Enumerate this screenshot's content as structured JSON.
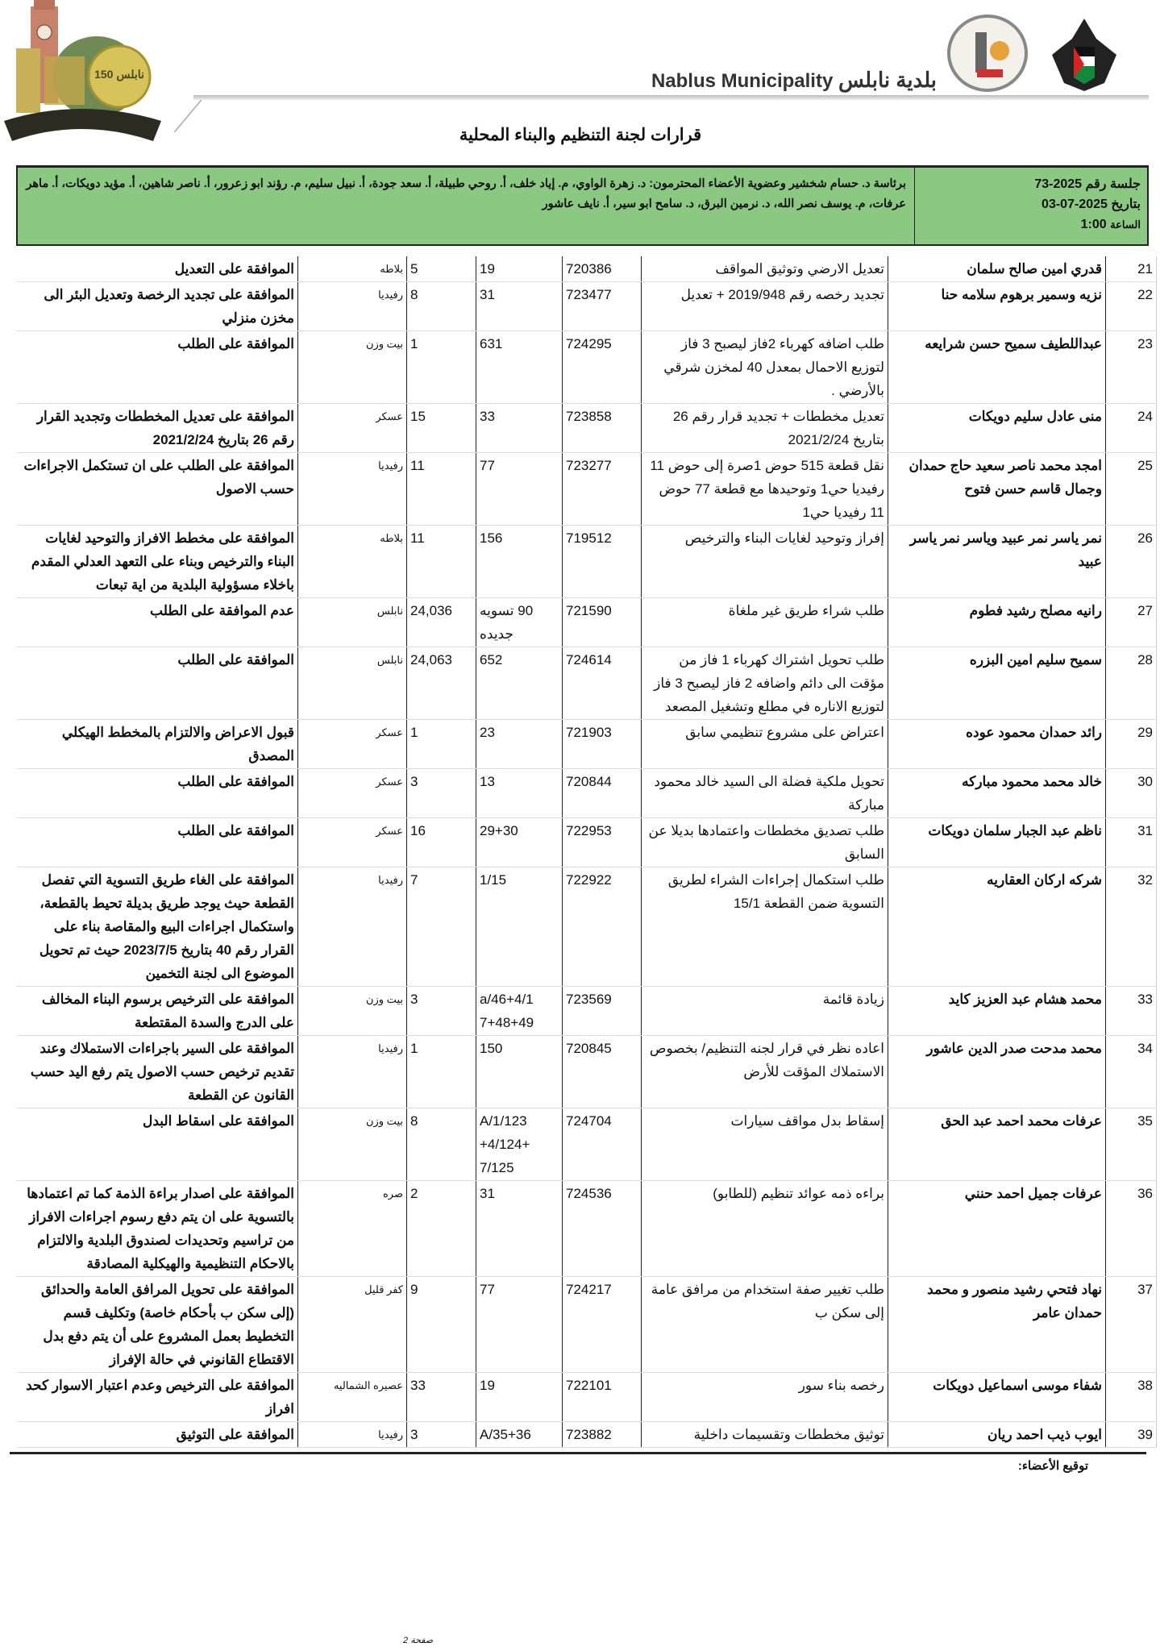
{
  "header": {
    "brand_ar": "بلدية نابلس",
    "brand_en": "Nablus Municipality",
    "left_logo_text": "نابلس 150",
    "seal_text": "بلدية نابلس",
    "emblem_text": "فلسطين",
    "title": "قرارات لجنة التنظيم والبناء المحلية"
  },
  "session": {
    "number": "جلسة رقم 2025-73",
    "date": "بتاريخ 2025-07-03",
    "time_label": "الساعة",
    "time": "1:00",
    "members": "برئاسة د. حسام شخشير وعضوية الأعضاء المحترمون: د. زهرة الواوي، م. إياد خلف، أ. روحي طبيلة، أ. سعد جودة، أ. نبيل سليم، م. رؤند ابو زعرور، أ. ناصر شاهين، أ. مؤيد دويكات، أ. ماهر عرفات، م. يوسف نصر الله، د. نرمين البرق، د. سامح ابو سير، أ. نايف عاشور"
  },
  "rows": [
    {
      "num": "21",
      "name": "قدري امين صالح سلمان",
      "desc": "تعديل الارضي وتوثيق المواقف",
      "file": "720386",
      "piece": "19",
      "basin": "5",
      "site": "بلاطه",
      "decision": "الموافقة على التعديل"
    },
    {
      "num": "22",
      "name": "نزيه وسمير برهوم سلامه حنا",
      "desc": "تجديد رخصه رقم 2019/948 + تعديل",
      "file": "723477",
      "piece": "31",
      "basin": "8",
      "site": "رفيديا",
      "decision": "الموافقة على تجديد الرخصة وتعديل البئر الى مخزن منزلي"
    },
    {
      "num": "23",
      "name": "عبداللطيف سميح حسن شرايعه",
      "desc": "طلب اضافه كهرباء 2فاز ليصبح 3 فاز لتوزيع الاحمال بمعدل 40 لمخزن شرقي بالأرضي .",
      "file": "724295",
      "piece": "631",
      "basin": "1",
      "site": "بيت وزن",
      "decision": "الموافقة على الطلب"
    },
    {
      "num": "24",
      "name": "منى عادل سليم دويكات",
      "desc": "تعديل مخططات + تجديد قرار رقم 26 بتاريخ 2021/2/24",
      "file": "723858",
      "piece": "33",
      "basin": "15",
      "site": "عسكر",
      "decision": "الموافقة على تعديل المخططات وتجديد القرار رقم 26 بتاريخ 2021/2/24"
    },
    {
      "num": "25",
      "name": "امجد محمد ناصر سعيد حاج حمدان وجمال قاسم حسن فتوح",
      "desc": "نقل قطعة 515 حوض 1صرة إلى حوض 11 رفيديا حي1 وتوحيدها مع قطعة 77 حوض 11 رفيديا حي1",
      "file": "723277",
      "piece": "77",
      "basin": "11",
      "site": "رفيديا",
      "decision": "الموافقة على الطلب على ان تستكمل الاجراءات حسب الاصول"
    },
    {
      "num": "26",
      "name": "نمر ياسر نمر عبيد وياسر نمر ياسر عبيد",
      "desc": "إفراز وتوحيد لغايات البناء والترخيص",
      "file": "719512",
      "piece": "156",
      "basin": "11",
      "site": "بلاطه",
      "decision": "الموافقة على مخطط الافراز والتوحيد لغايات البناء والترخيص وبناء على التعهد العدلي المقدم باخلاء مسؤولية البلدية من اية تبعات"
    },
    {
      "num": "27",
      "name": "رانيه مصلح رشيد فطوم",
      "desc": "طلب شراء طريق غير ملغاة",
      "file": "721590",
      "piece": "90 تسويه جديده",
      "basin": "24,036",
      "site": "نابلس",
      "decision": "عدم الموافقة على الطلب"
    },
    {
      "num": "28",
      "name": "سميح سليم امين البزره",
      "desc": "طلب تحويل اشتراك كهرباء 1 فاز من مؤقت الى دائم واضافه 2 فاز ليصبح 3 فاز لتوزيع الاناره في مطلع وتشغيل المصعد",
      "file": "724614",
      "piece": "652",
      "basin": "24,063",
      "site": "نابلس",
      "decision": "الموافقة على الطلب"
    },
    {
      "num": "29",
      "name": "رائد حمدان محمود عوده",
      "desc": "اعتراض على مشروع تنظيمي سابق",
      "file": "721903",
      "piece": "23",
      "basin": "1",
      "site": "عسكر",
      "decision": "قبول الاعراض والالتزام بالمخطط الهيكلي المصدق"
    },
    {
      "num": "30",
      "name": "خالد محمد محمود مباركه",
      "desc": "تحويل ملكية فضلة الى السيد خالد محمود مباركة",
      "file": "720844",
      "piece": "13",
      "basin": "3",
      "site": "عسكر",
      "decision": "الموافقة على الطلب"
    },
    {
      "num": "31",
      "name": "ناظم عبد الجبار سلمان دويكات",
      "desc": "طلب تصديق مخططات واعتمادها بديلا عن السابق",
      "file": "722953",
      "piece": "29+30",
      "basin": "16",
      "site": "عسكر",
      "decision": "الموافقة على الطلب"
    },
    {
      "num": "32",
      "name": "شركه اركان العقاريه",
      "desc": "طلب استكمال إجراءات الشراء لطريق التسوية ضمن القطعة 15/1",
      "file": "722922",
      "piece": "1/15",
      "basin": "7",
      "site": "رفيديا",
      "decision": "الموافقة على الغاء طريق التسوية التي تفصل القطعة حيث يوجد طريق بديلة تحيط بالقطعة، واستكمال اجراءات البيع والمقاصة بناء على القرار رقم 40 بتاريخ 2023/7/5 حيث تم تحويل الموضوع الى لجنة التخمين"
    },
    {
      "num": "33",
      "name": "محمد هشام عبد العزيز كايد",
      "desc": "زيادة قائمة",
      "file": "723569",
      "piece": "a/46+4/1 7+48+49",
      "basin": "3",
      "site": "بيت وزن",
      "decision": "الموافقة على الترخيص برسوم البناء المخالف على الدرج والسدة المقتطعة"
    },
    {
      "num": "34",
      "name": "محمد مدحت صدر الدين عاشور",
      "desc": "اعاده نظر في قرار لجنه التنظيم/ بخصوص الاستملاك المؤقت للأرض",
      "file": "720845",
      "piece": "150",
      "basin": "1",
      "site": "رفيديا",
      "decision": "الموافقة على السير باجراءات الاستملاك وعند تقديم ترخيص حسب الاصول يتم رفع اليد حسب القانون عن القطعة"
    },
    {
      "num": "35",
      "name": "عرفات محمد احمد عبد الحق",
      "desc": "إسقاط بدل مواقف سيارات",
      "file": "724704",
      "piece": "A/1/123 +4/124+ 7/125",
      "basin": "8",
      "site": "بيت وزن",
      "decision": "الموافقة على اسقاط البدل"
    },
    {
      "num": "36",
      "name": "عرفات جميل احمد حنني",
      "desc": "براءه ذمه عوائد تنظيم (للطابو)",
      "file": "724536",
      "piece": "31",
      "basin": "2",
      "site": "صره",
      "decision": "الموافقة على اصدار براءة الذمة كما تم اعتمادها بالتسوية على ان يتم دفع رسوم اجراءات الافراز من تراسيم وتحديدات لصندوق البلدية والالتزام بالاحكام التنظيمية والهيكلية المصادقة"
    },
    {
      "num": "37",
      "name": "نهاد فتحي رشيد منصور و محمد حمدان عامر",
      "desc": "طلب تغيير صفة استخدام من مرافق عامة إلى سكن ب",
      "file": "724217",
      "piece": "77",
      "basin": "9",
      "site": "كفر قليل",
      "decision": "الموافقة على تحويل المرافق العامة والحدائق (إلى سكن ب بأحكام خاصة) وتكليف قسم التخطيط بعمل المشروع على أن يتم دفع بدل الاقتطاع القانوني في حالة الإفراز"
    },
    {
      "num": "38",
      "name": "شفاء موسى اسماعيل دويكات",
      "desc": "رخصه بناء سور",
      "file": "722101",
      "piece": "19",
      "basin": "33",
      "site": "عصيره الشماليه",
      "decision": "الموافقة على الترخيص وعدم اعتبار الاسوار كحد افراز"
    },
    {
      "num": "39",
      "name": "ايوب ذيب احمد ريان",
      "desc": "توثيق مخططات وتقسيمات داخلية",
      "file": "723882",
      "piece": "A/35+36",
      "basin": "3",
      "site": "رفيديا",
      "decision": "الموافقة على التوثيق"
    }
  ],
  "footer": {
    "signature_label": "توقيع الأعضاء:",
    "page_label": "صفحة",
    "page_number": "2"
  },
  "colors": {
    "session_bg": "#8bc882",
    "border": "#222222"
  }
}
